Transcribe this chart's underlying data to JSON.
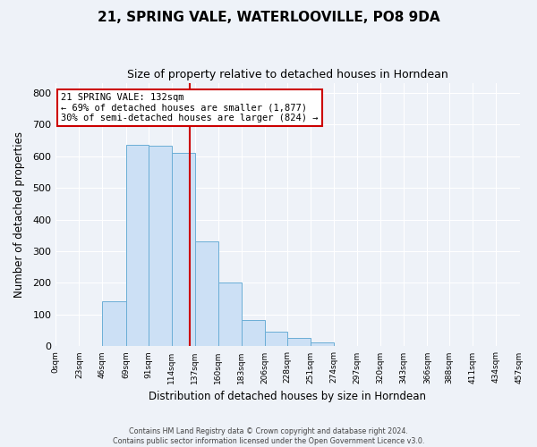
{
  "title": "21, SPRING VALE, WATERLOOVILLE, PO8 9DA",
  "subtitle": "Size of property relative to detached houses in Horndean",
  "xlabel": "Distribution of detached houses by size in Horndean",
  "ylabel": "Number of detached properties",
  "bin_labels": [
    "0sqm",
    "23sqm",
    "46sqm",
    "69sqm",
    "91sqm",
    "114sqm",
    "137sqm",
    "160sqm",
    "183sqm",
    "206sqm",
    "228sqm",
    "251sqm",
    "274sqm",
    "297sqm",
    "320sqm",
    "343sqm",
    "366sqm",
    "388sqm",
    "411sqm",
    "434sqm",
    "457sqm"
  ],
  "bin_edges": [
    0,
    23,
    46,
    69,
    91,
    114,
    137,
    160,
    183,
    206,
    228,
    251,
    274,
    297,
    320,
    343,
    366,
    388,
    411,
    434,
    457
  ],
  "bar_heights": [
    2,
    0,
    142,
    635,
    632,
    610,
    332,
    200,
    83,
    46,
    27,
    12,
    0,
    0,
    0,
    0,
    0,
    0,
    0,
    2
  ],
  "bar_color": "#cce0f5",
  "bar_edge_color": "#6baed6",
  "vline_x": 132,
  "vline_color": "#cc0000",
  "annotation_line1": "21 SPRING VALE: 132sqm",
  "annotation_line2": "← 69% of detached houses are smaller (1,877)",
  "annotation_line3": "30% of semi-detached houses are larger (824) →",
  "annotation_box_color": "#ffffff",
  "annotation_box_edge_color": "#cc0000",
  "ylim": [
    0,
    830
  ],
  "yticks": [
    0,
    100,
    200,
    300,
    400,
    500,
    600,
    700,
    800
  ],
  "footer_line1": "Contains HM Land Registry data © Crown copyright and database right 2024.",
  "footer_line2": "Contains public sector information licensed under the Open Government Licence v3.0.",
  "background_color": "#eef2f8",
  "plot_bg_color": "#eef2f8",
  "grid_color": "#ffffff",
  "title_fontsize": 11,
  "subtitle_fontsize": 9
}
